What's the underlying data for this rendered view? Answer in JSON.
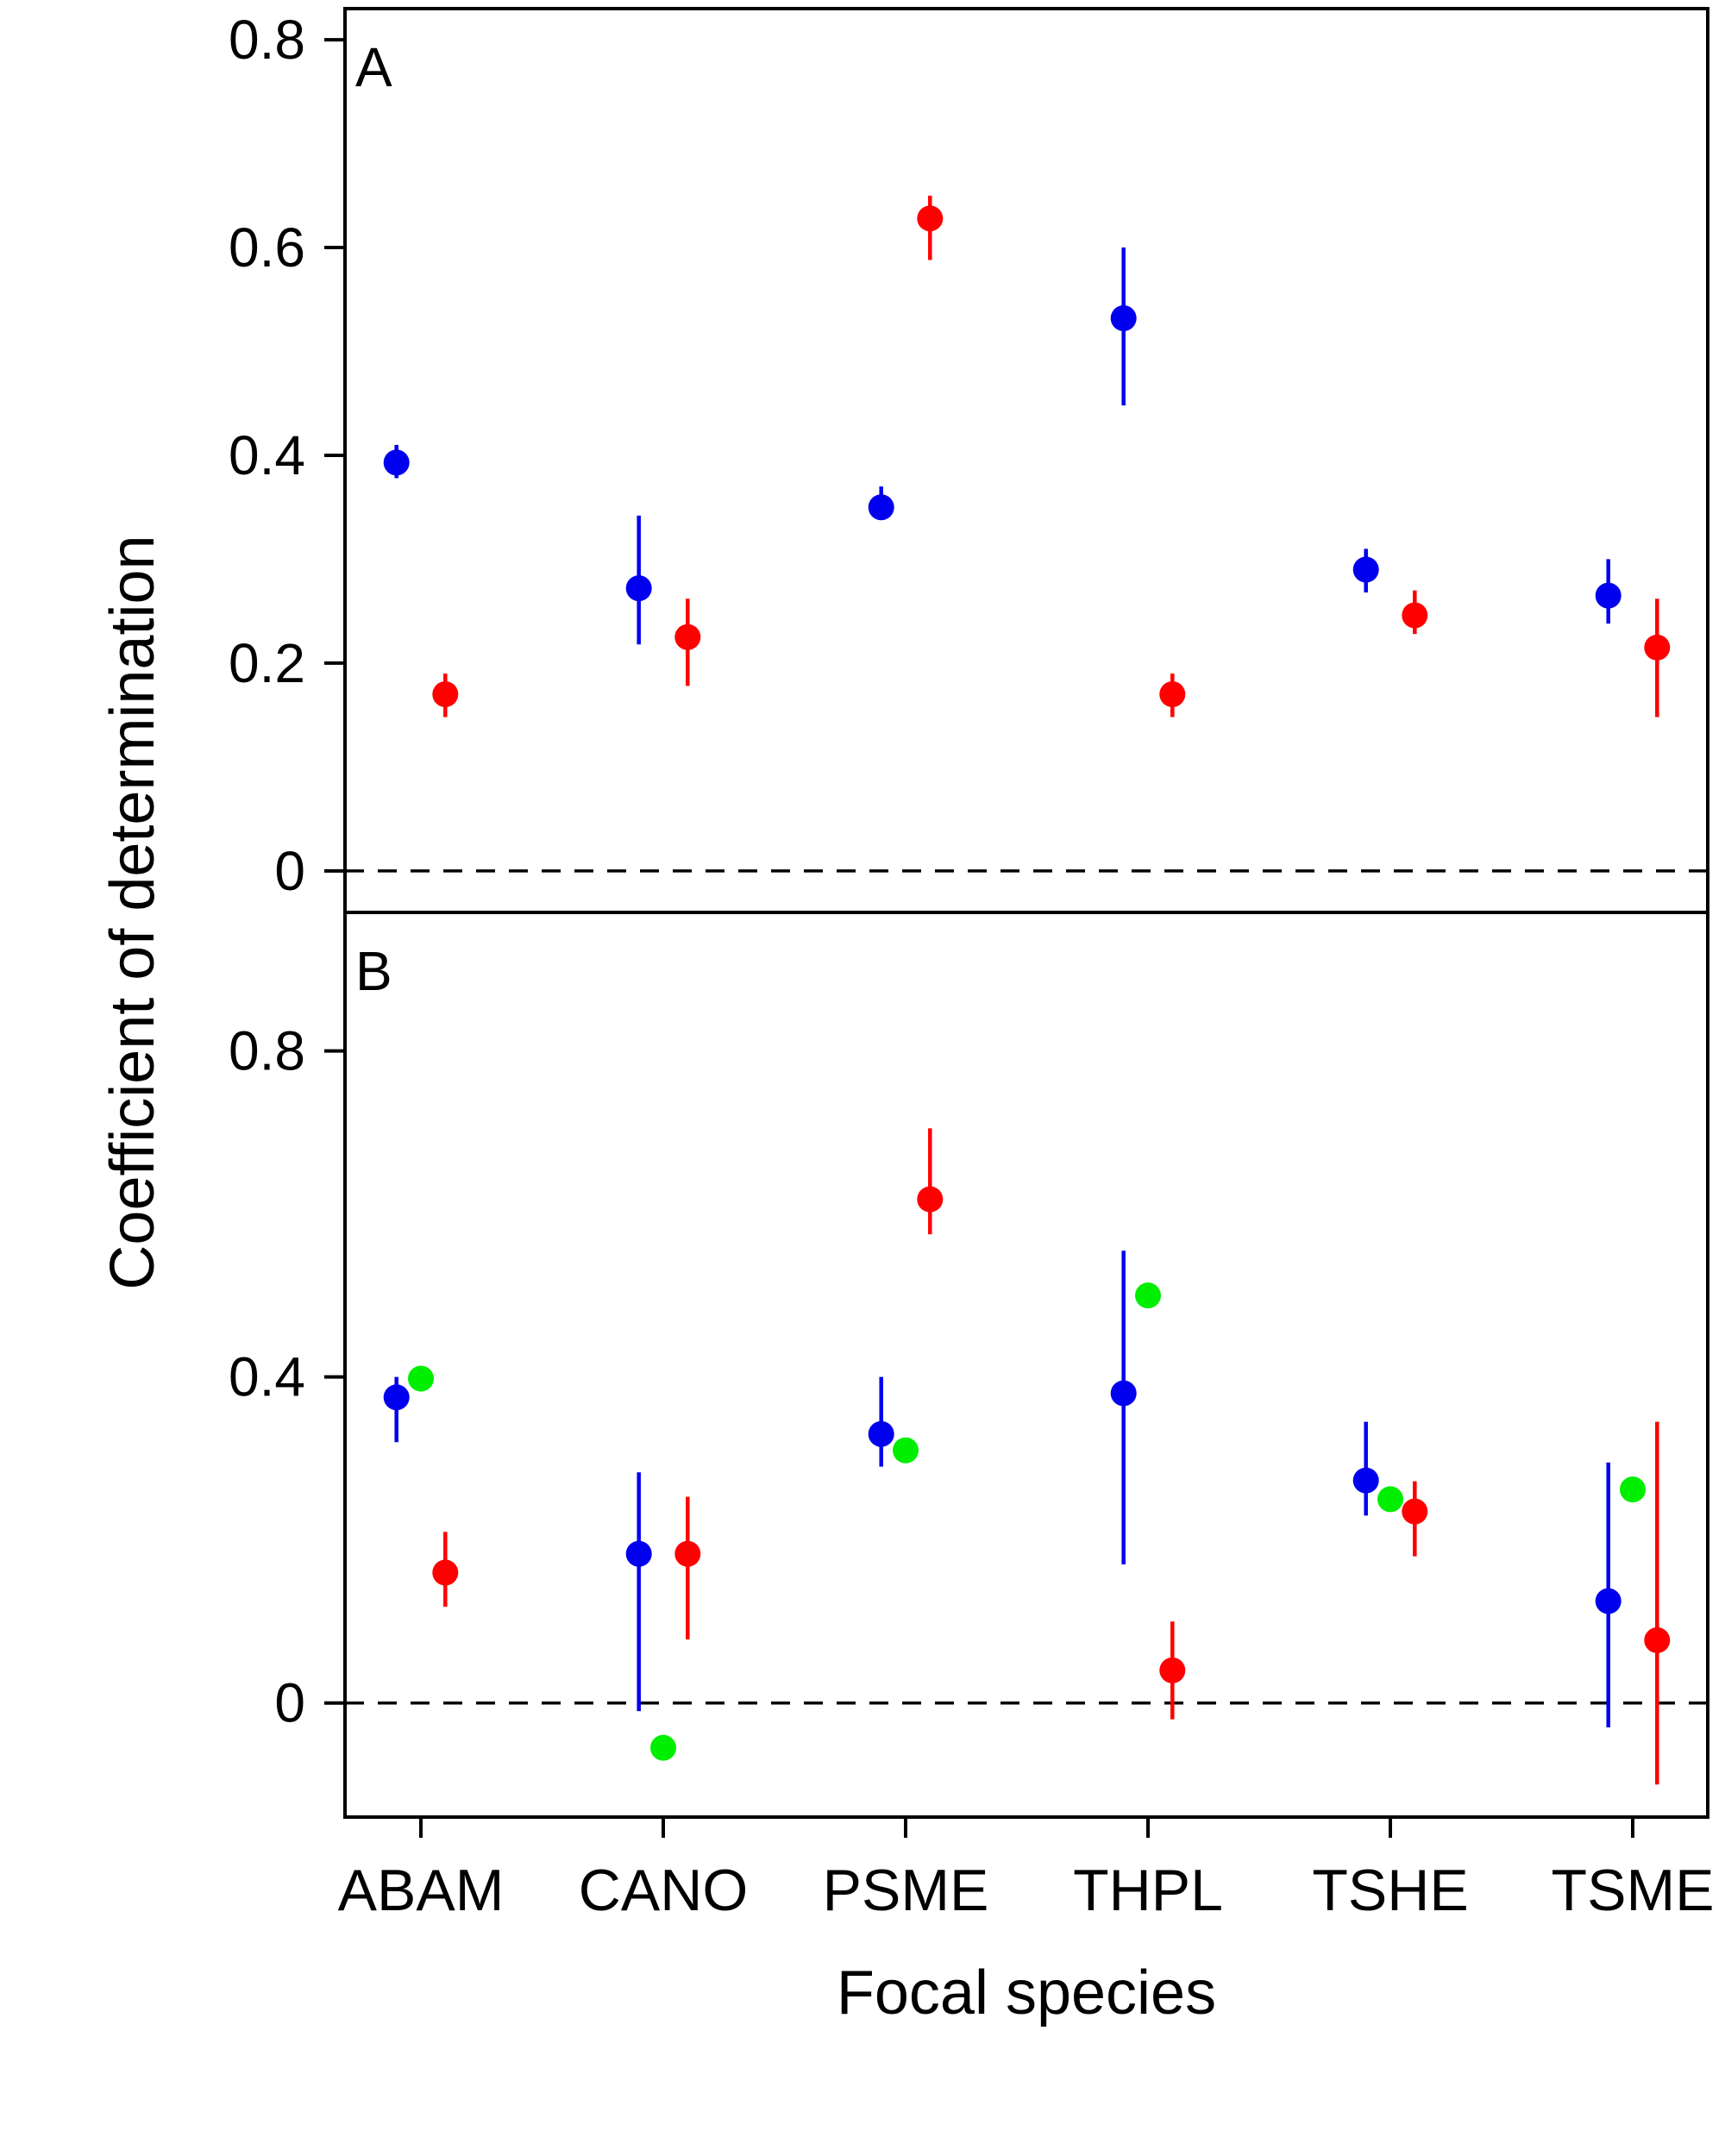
{
  "chart_data": {
    "type": "scatter",
    "xlabel": "Focal species",
    "ylabel": "Coefficient of determination",
    "categories": [
      "ABAM",
      "CANO",
      "PSME",
      "THPL",
      "TSHE",
      "TSME"
    ],
    "colors": {
      "blue": "#0000ee",
      "red": "#ff0000",
      "green": "#00ee00"
    },
    "panels": [
      {
        "label": "A",
        "ylim": [
          -0.04,
          0.83
        ],
        "yticks": [
          {
            "value": 0,
            "label": "0"
          },
          {
            "value": 0.2,
            "label": "0.2"
          },
          {
            "value": 0.4,
            "label": "0.4"
          },
          {
            "value": 0.6,
            "label": "0.6"
          },
          {
            "value": 0.8,
            "label": "0.8"
          }
        ],
        "reference_line": 0,
        "series": [
          {
            "color": "blue",
            "offset": -0.1,
            "points": [
              {
                "y": 0.393,
                "low": 0.378,
                "high": 0.41
              },
              {
                "y": 0.272,
                "low": 0.218,
                "high": 0.342
              },
              {
                "y": 0.35,
                "low": 0.338,
                "high": 0.37
              },
              {
                "y": 0.532,
                "low": 0.448,
                "high": 0.6
              },
              {
                "y": 0.29,
                "low": 0.268,
                "high": 0.31
              },
              {
                "y": 0.265,
                "low": 0.238,
                "high": 0.3
              }
            ]
          },
          {
            "color": "red",
            "offset": 0.1,
            "points": [
              {
                "y": 0.17,
                "low": 0.148,
                "high": 0.19
              },
              {
                "y": 0.225,
                "low": 0.178,
                "high": 0.262
              },
              {
                "y": 0.628,
                "low": 0.588,
                "high": 0.65
              },
              {
                "y": 0.17,
                "low": 0.148,
                "high": 0.19
              },
              {
                "y": 0.246,
                "low": 0.228,
                "high": 0.27
              },
              {
                "y": 0.215,
                "low": 0.148,
                "high": 0.262
              }
            ]
          }
        ]
      },
      {
        "label": "B",
        "ylim": [
          -0.14,
          0.97
        ],
        "yticks": [
          {
            "value": 0,
            "label": "0"
          },
          {
            "value": 0.4,
            "label": "0.4"
          },
          {
            "value": 0.8,
            "label": "0.8"
          }
        ],
        "reference_line": 0,
        "series": [
          {
            "color": "blue",
            "offset": -0.1,
            "points": [
              {
                "y": 0.375,
                "low": 0.32,
                "high": 0.4
              },
              {
                "y": 0.183,
                "low": -0.01,
                "high": 0.283
              },
              {
                "y": 0.33,
                "low": 0.29,
                "high": 0.4
              },
              {
                "y": 0.38,
                "low": 0.17,
                "high": 0.555
              },
              {
                "y": 0.273,
                "low": 0.23,
                "high": 0.345
              },
              {
                "y": 0.125,
                "low": -0.03,
                "high": 0.295
              }
            ]
          },
          {
            "color": "green",
            "offset": 0,
            "points": [
              {
                "y": 0.398
              },
              {
                "y": -0.055
              },
              {
                "y": 0.31
              },
              {
                "y": 0.5
              },
              {
                "y": 0.25
              },
              {
                "y": 0.262
              }
            ]
          },
          {
            "color": "red",
            "offset": 0.1,
            "points": [
              {
                "y": 0.16,
                "low": 0.118,
                "high": 0.21
              },
              {
                "y": 0.183,
                "low": 0.078,
                "high": 0.253
              },
              {
                "y": 0.618,
                "low": 0.575,
                "high": 0.705
              },
              {
                "y": 0.04,
                "low": -0.02,
                "high": 0.1
              },
              {
                "y": 0.235,
                "low": 0.18,
                "high": 0.272
              },
              {
                "y": 0.077,
                "low": -0.1,
                "high": 0.345
              }
            ]
          }
        ]
      }
    ]
  }
}
